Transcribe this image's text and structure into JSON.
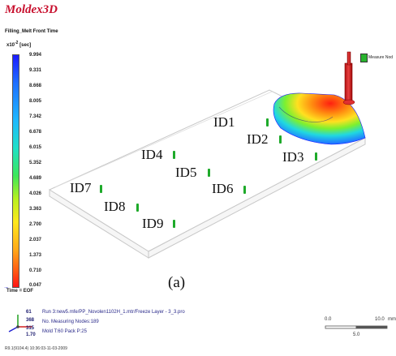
{
  "app": {
    "logo": "Moldex3D"
  },
  "result": {
    "title": "Filling_Melt Front Time",
    "unit_prefix": "x10",
    "unit_exp": "-2",
    "unit_suffix": "[sec]"
  },
  "colorbar": {
    "ticks": [
      "9.994",
      "9.331",
      "8.668",
      "8.005",
      "7.342",
      "6.678",
      "6.015",
      "5.352",
      "4.689",
      "4.026",
      "3.363",
      "2.700",
      "2.037",
      "1.373",
      "0.710",
      "0.047"
    ],
    "eof_label": "Time = EOF"
  },
  "legend": {
    "label": "Measure Nod"
  },
  "nodes": [
    {
      "id": "ID1"
    },
    {
      "id": "ID2"
    },
    {
      "id": "ID3"
    },
    {
      "id": "ID4"
    },
    {
      "id": "ID5"
    },
    {
      "id": "ID6"
    },
    {
      "id": "ID7"
    },
    {
      "id": "ID8"
    },
    {
      "id": "ID9"
    }
  ],
  "caption": "(a)",
  "info": {
    "numbers": [
      "61",
      "368",
      "315",
      "1.70"
    ],
    "run": "Run 3:new5.mfe/PP_Novolen1102H_1.mtr/Freeze Layer - 3_3.pro",
    "nodes_count": "No. Measuring Nodes:189",
    "mold": "Mold T:60  Pack P:25"
  },
  "scale": {
    "left": "0.0",
    "mid": "5.0",
    "right": "10.0",
    "unit": "mm"
  },
  "footer": {
    "version": "R9.1(9104.4) 10:36:03-11-03-2009"
  },
  "colors": {
    "logo": "#c8102e",
    "marker": "#1eaa2a",
    "info_text": "#2a2a8a"
  }
}
